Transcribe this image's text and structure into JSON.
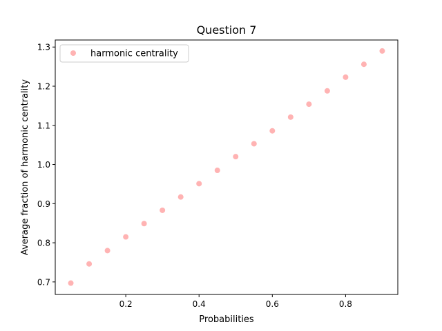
{
  "chart_data": {
    "type": "scatter",
    "title": "Question 7",
    "xlabel": "Probabilities",
    "ylabel": "Average fraction of harmonic centrality",
    "xlim": [
      0.0075,
      0.9425
    ],
    "ylim": [
      0.668,
      1.318
    ],
    "xticks": [
      0.2,
      0.4,
      0.6,
      0.8
    ],
    "xtick_labels": [
      "0.2",
      "0.4",
      "0.6",
      "0.8"
    ],
    "yticks": [
      0.7,
      0.8,
      0.9,
      1.0,
      1.1,
      1.2,
      1.3
    ],
    "ytick_labels": [
      "0.7",
      "0.8",
      "0.9",
      "1.0",
      "1.1",
      "1.2",
      "1.3"
    ],
    "grid": false,
    "legend_position": "top-left",
    "series": [
      {
        "name": "harmonic centrality",
        "color": "#ffb3b3",
        "x": [
          0.05,
          0.1,
          0.15,
          0.2,
          0.25,
          0.3,
          0.35,
          0.4,
          0.45,
          0.5,
          0.55,
          0.6,
          0.65,
          0.7,
          0.75,
          0.8,
          0.85,
          0.9
        ],
        "y": [
          0.697,
          0.746,
          0.78,
          0.815,
          0.849,
          0.883,
          0.917,
          0.951,
          0.985,
          1.02,
          1.053,
          1.086,
          1.121,
          1.154,
          1.188,
          1.223,
          1.256,
          1.29
        ]
      }
    ]
  }
}
